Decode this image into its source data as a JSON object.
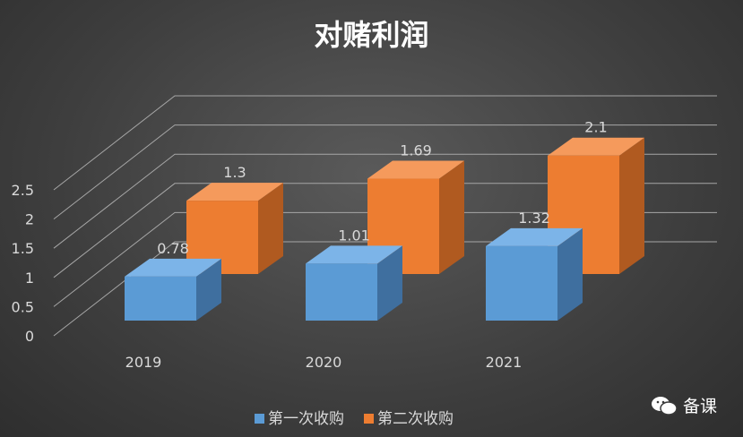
{
  "chart_data": {
    "type": "bar",
    "title": "对赌利润",
    "categories": [
      "2019",
      "2020",
      "2021"
    ],
    "series": [
      {
        "name": "第一次收购",
        "values": [
          0.78,
          1.01,
          1.32
        ],
        "color": "#5b9bd5"
      },
      {
        "name": "第二次收购",
        "values": [
          1.3,
          1.69,
          2.1
        ],
        "color": "#ed7d31"
      }
    ],
    "yticks": [
      "0",
      "0.5",
      "1",
      "1.5",
      "2",
      "2.5"
    ],
    "ylim": [
      0,
      2.5
    ],
    "grid": true,
    "legend": "bottom",
    "three_d": true
  },
  "watermark": {
    "text": "备课",
    "icon": "wechat-icon"
  }
}
